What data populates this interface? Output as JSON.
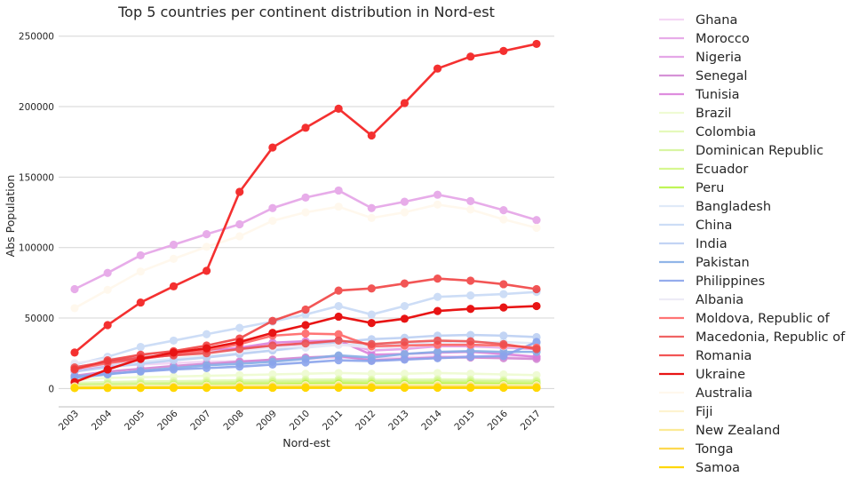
{
  "chart_data": {
    "type": "line",
    "title": "Top 5 countries per continent distribution in Nord-est",
    "xlabel": "Nord-est",
    "ylabel": "Abs Population",
    "x": [
      "2003",
      "2004",
      "2005",
      "2006",
      "2007",
      "2008",
      "2009",
      "2010",
      "2011",
      "2012",
      "2013",
      "2014",
      "2015",
      "2016",
      "2017"
    ],
    "ylim": [
      -13000,
      258000
    ],
    "yticks": [
      0,
      50000,
      100000,
      150000,
      200000,
      250000
    ],
    "ytick_labels": [
      "0",
      "50000",
      "100000",
      "150000",
      "200000",
      "250000"
    ],
    "grid": "horizontal",
    "legend_position": "right, outside",
    "series": [
      {
        "name": "Ghana",
        "color": "#f3d2f3",
        "alpha": 0.9,
        "values": [
          13000,
          16000,
          17000,
          18000,
          19000,
          19500,
          20000,
          21000,
          22000,
          21000,
          22000,
          23000,
          23000,
          23000,
          22000
        ]
      },
      {
        "name": "Morocco",
        "color": "#e6a8e8",
        "alpha": 0.95,
        "values": [
          70500,
          82000,
          94500,
          102000,
          109500,
          116500,
          128000,
          135500,
          140500,
          128000,
          132500,
          137500,
          133000,
          126500,
          119500
        ]
      },
      {
        "name": "Nigeria",
        "color": "#e39ee6",
        "alpha": 0.9,
        "values": [
          15000,
          19000,
          22000,
          24000,
          26000,
          28000,
          30000,
          32000,
          33000,
          27000,
          28000,
          30000,
          30000,
          29000,
          28000
        ]
      },
      {
        "name": "Senegal",
        "color": "#cf7fd1",
        "alpha": 0.85,
        "values": [
          9000,
          12000,
          14000,
          16000,
          17500,
          19000,
          20500,
          22000,
          23000,
          20000,
          21000,
          22000,
          22000,
          21500,
          21000
        ]
      },
      {
        "name": "Tunisia",
        "color": "#d97ad9",
        "alpha": 0.85,
        "values": [
          12000,
          16500,
          21000,
          24000,
          26500,
          29000,
          32500,
          33500,
          34000,
          24000,
          24500,
          25500,
          26000,
          24500,
          22500
        ]
      },
      {
        "name": "Brazil",
        "color": "#eefbd0",
        "alpha": 0.9,
        "values": [
          6000,
          7500,
          8000,
          8500,
          9000,
          9500,
          10000,
          10500,
          11000,
          10500,
          10500,
          11000,
          10500,
          10000,
          9500
        ]
      },
      {
        "name": "Colombia",
        "color": "#e3f9b4",
        "alpha": 0.9,
        "values": [
          4000,
          4500,
          5000,
          5200,
          5500,
          5800,
          6000,
          6300,
          6500,
          6200,
          6300,
          6500,
          6300,
          6000,
          5800
        ]
      },
      {
        "name": "Dominican Republic",
        "color": "#d4f59a",
        "alpha": 0.9,
        "values": [
          3000,
          3300,
          3600,
          3900,
          4200,
          4500,
          4800,
          5100,
          5400,
          5100,
          5200,
          5400,
          5200,
          5000,
          4800
        ]
      },
      {
        "name": "Ecuador",
        "color": "#d2f784",
        "alpha": 0.9,
        "values": [
          2500,
          2800,
          3000,
          3300,
          3500,
          3700,
          4000,
          4300,
          4500,
          4300,
          4400,
          4500,
          4400,
          4200,
          4000
        ]
      },
      {
        "name": "Peru",
        "color": "#b9f545",
        "alpha": 0.9,
        "values": [
          1500,
          1800,
          2000,
          2300,
          2500,
          2800,
          3000,
          3300,
          3500,
          3300,
          3400,
          3500,
          3400,
          3200,
          3000
        ]
      },
      {
        "name": "Bangladesh",
        "color": "#dde8f8",
        "alpha": 0.9,
        "values": [
          14000,
          17000,
          19000,
          21000,
          23000,
          25000,
          27000,
          29000,
          31000,
          31000,
          32000,
          33000,
          33000,
          33000,
          32000
        ]
      },
      {
        "name": "China",
        "color": "#c8daf6",
        "alpha": 0.9,
        "values": [
          17000,
          22500,
          29500,
          34000,
          38500,
          43000,
          47500,
          52500,
          58500,
          52500,
          58500,
          65000,
          66000,
          67000,
          68500
        ]
      },
      {
        "name": "India",
        "color": "#bcd0f3",
        "alpha": 0.9,
        "values": [
          12000,
          15000,
          17500,
          20000,
          22000,
          24500,
          27000,
          30000,
          33000,
          35000,
          36000,
          37500,
          38000,
          37500,
          36500
        ]
      },
      {
        "name": "Pakistan",
        "color": "#86aee6",
        "alpha": 0.9,
        "values": [
          7500,
          10000,
          12500,
          14500,
          16500,
          17500,
          19000,
          21000,
          23500,
          22000,
          24500,
          26000,
          26500,
          26000,
          26000
        ]
      },
      {
        "name": "Philippines",
        "color": "#8aa4ec",
        "alpha": 0.9,
        "values": [
          8500,
          10500,
          12000,
          13500,
          14500,
          15500,
          17000,
          18500,
          20000,
          19500,
          20500,
          21500,
          22500,
          23000,
          33000
        ]
      },
      {
        "name": "Albania",
        "color": "#ece9f6",
        "alpha": 0.9,
        "values": [
          18000,
          21000,
          23000,
          24500,
          26000,
          27000,
          29000,
          30000,
          31000,
          29000,
          30000,
          31000,
          31000,
          30000,
          29000
        ]
      },
      {
        "name": "Moldova, Republic of",
        "color": "#ff5c5c",
        "alpha": 0.85,
        "values": [
          14000,
          18000,
          21000,
          24000,
          27000,
          31500,
          37500,
          39000,
          38500,
          30000,
          30500,
          31000,
          31000,
          30500,
          29000
        ]
      },
      {
        "name": "Macedonia, Republic of",
        "color": "#ee4a4a",
        "alpha": 0.85,
        "values": [
          15000,
          19000,
          22000,
          23500,
          25000,
          28000,
          30500,
          32000,
          34000,
          31500,
          33000,
          34000,
          33500,
          31500,
          28000
        ]
      },
      {
        "name": "Romania",
        "color": "#f03838",
        "alpha": 0.85,
        "values": [
          13500,
          20000,
          24000,
          26500,
          30500,
          35500,
          48000,
          56000,
          69500,
          71000,
          74500,
          78000,
          76500,
          74000,
          70500
        ]
      },
      {
        "name": "Ukraine",
        "color": "#e81414",
        "alpha": 1.0,
        "values": [
          4500,
          13500,
          21000,
          25500,
          28500,
          33000,
          39500,
          45000,
          51000,
          46500,
          49500,
          55000,
          56500,
          57500,
          58500
        ]
      },
      {
        "name": "Australia",
        "color": "#fff8ec",
        "alpha": 0.9,
        "values": [
          57000,
          70000,
          83000,
          92000,
          100500,
          108000,
          119000,
          125000,
          129000,
          121000,
          125000,
          130500,
          127000,
          120000,
          114000
        ]
      },
      {
        "name": "Fiji",
        "color": "#fdf2cc",
        "alpha": 0.9,
        "values": [
          1500,
          1700,
          1900,
          2000,
          2100,
          2200,
          2300,
          2400,
          2500,
          2400,
          2450,
          2500,
          2450,
          2400,
          2300
        ]
      },
      {
        "name": "New Zealand",
        "color": "#fbe88a",
        "alpha": 0.9,
        "values": [
          1000,
          1100,
          1200,
          1300,
          1400,
          1500,
          1600,
          1700,
          1800,
          1700,
          1750,
          1800,
          1750,
          1700,
          1600
        ]
      },
      {
        "name": "Tonga",
        "color": "#fdd43c",
        "alpha": 0.9,
        "values": [
          500,
          600,
          650,
          700,
          750,
          800,
          850,
          900,
          950,
          900,
          920,
          950,
          920,
          900,
          850
        ]
      },
      {
        "name": "Samoa",
        "color": "#ffd700",
        "alpha": 1.0,
        "values": [
          300,
          350,
          400,
          420,
          450,
          480,
          500,
          520,
          540,
          520,
          530,
          540,
          530,
          520,
          500
        ]
      },
      {
        "name": "",
        "color": "#f43030",
        "alpha": 1.0,
        "legend": false,
        "values": [
          25500,
          45000,
          61000,
          72500,
          83500,
          139500,
          171000,
          185000,
          198500,
          179500,
          202500,
          227000,
          235500,
          239500,
          244500
        ]
      }
    ]
  }
}
